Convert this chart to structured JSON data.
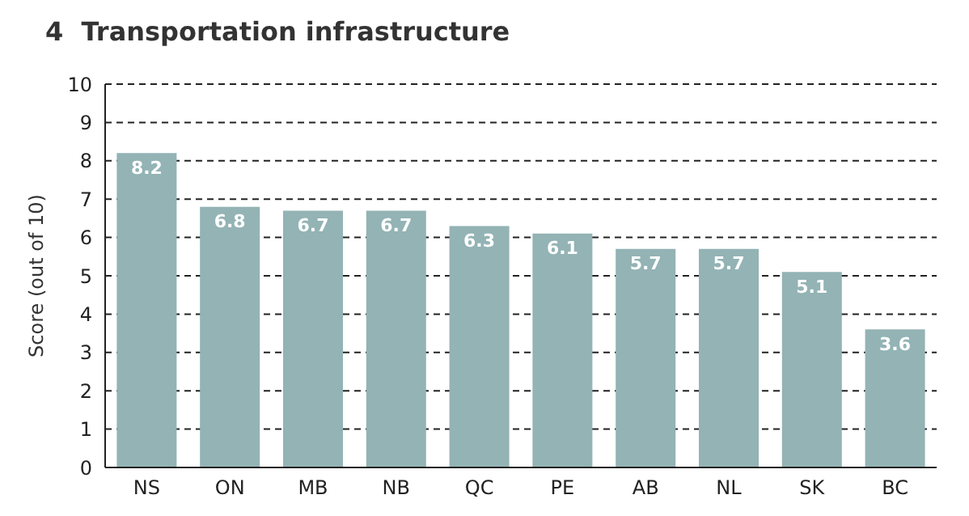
{
  "chart_data": {
    "type": "bar",
    "title": "4  Transportation infrastructure",
    "ylabel": "Score (out of 10)",
    "categories": [
      "NS",
      "ON",
      "MB",
      "NB",
      "QC",
      "PE",
      "AB",
      "NL",
      "SK",
      "BC"
    ],
    "values": [
      8.2,
      6.8,
      6.7,
      6.7,
      6.3,
      6.1,
      5.7,
      5.7,
      5.1,
      3.6
    ],
    "color": "#93b3b5",
    "ylim": [
      0,
      10
    ],
    "yticks": [
      0,
      1,
      2,
      3,
      4,
      5,
      6,
      7,
      8,
      9,
      10
    ],
    "grid": "y",
    "data_labels": true
  }
}
